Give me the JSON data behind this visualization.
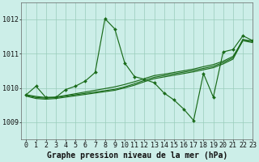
{
  "title": "",
  "xlabel": "Graphe pression niveau de la mer (hPa)",
  "xlim": [
    -0.5,
    23
  ],
  "ylim": [
    1008.5,
    1012.5
  ],
  "yticks": [
    1009,
    1010,
    1011,
    1012
  ],
  "xticks": [
    0,
    1,
    2,
    3,
    4,
    5,
    6,
    7,
    8,
    9,
    10,
    11,
    12,
    13,
    14,
    15,
    16,
    17,
    18,
    19,
    20,
    21,
    22,
    23
  ],
  "bg_color": "#cceee8",
  "grid_color": "#99ccbb",
  "line_color": "#1a6b1a",
  "series_main": [
    1009.8,
    1010.05,
    1009.72,
    1009.72,
    1009.95,
    1010.05,
    1010.2,
    1010.45,
    1012.02,
    1011.72,
    1010.73,
    1010.33,
    1010.25,
    1010.15,
    1009.85,
    1009.65,
    1009.38,
    1009.05,
    1010.42,
    1009.73,
    1011.05,
    1011.12,
    1011.52,
    1011.38
  ],
  "series_trend1": [
    1009.8,
    1009.75,
    1009.72,
    1009.73,
    1009.78,
    1009.83,
    1009.88,
    1009.93,
    1009.98,
    1010.03,
    1010.1,
    1010.18,
    1010.27,
    1010.36,
    1010.4,
    1010.45,
    1010.5,
    1010.55,
    1010.62,
    1010.68,
    1010.78,
    1010.92,
    1011.38,
    1011.38
  ],
  "series_trend2": [
    1009.78,
    1009.72,
    1009.7,
    1009.72,
    1009.76,
    1009.8,
    1009.84,
    1009.88,
    1009.92,
    1009.96,
    1010.03,
    1010.12,
    1010.22,
    1010.31,
    1010.36,
    1010.41,
    1010.46,
    1010.51,
    1010.57,
    1010.63,
    1010.74,
    1010.88,
    1011.42,
    1011.35
  ],
  "series_trend3": [
    1009.76,
    1009.69,
    1009.67,
    1009.69,
    1009.73,
    1009.77,
    1009.81,
    1009.85,
    1009.89,
    1009.93,
    1010.0,
    1010.08,
    1010.18,
    1010.27,
    1010.32,
    1010.37,
    1010.42,
    1010.47,
    1010.53,
    1010.59,
    1010.7,
    1010.84,
    1011.38,
    1011.32
  ],
  "fontsize_label": 7,
  "fontsize_tick": 6
}
